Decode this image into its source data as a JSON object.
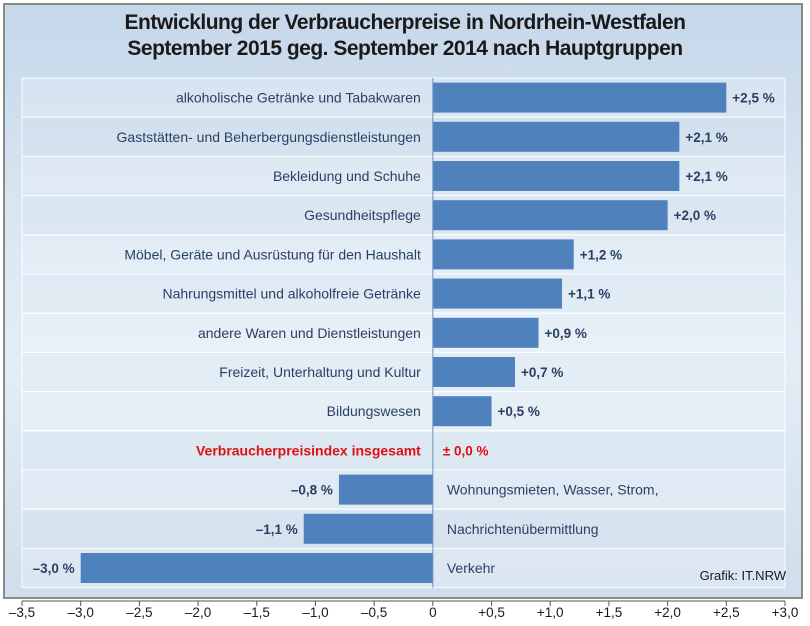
{
  "chart_data": {
    "type": "bar",
    "orientation": "horizontal",
    "title_lines": [
      "Entwicklung der Verbraucherpreise in Nordrhein-Westfalen",
      "September 2015 geg. September 2014 nach Hauptgruppen"
    ],
    "categories": [
      "alkoholische Getränke und Tabakwaren",
      "Gaststätten-  und Beherbergungsdienstleistungen",
      "Bekleidung und Schuhe",
      "Gesundheitspflege",
      "Möbel, Geräte und Ausrüstung  für den Haushalt",
      "Nahrungsmittel und alkoholfreie Getränke",
      "andere Waren und Dienstleistungen",
      "Freizeit, Unterhaltung und Kultur",
      "Bildungswesen",
      "Verbraucherpreisindex insgesamt",
      "Wohnungsmieten, Wasser, Strom,",
      "Nachrichtenübermittlung",
      "Verkehr"
    ],
    "values": [
      2.5,
      2.1,
      2.1,
      2.0,
      1.2,
      1.1,
      0.9,
      0.7,
      0.5,
      0.0,
      -0.8,
      -1.1,
      -3.0
    ],
    "value_labels": [
      "+2,5 %",
      "+2,1 %",
      "+2,1 %",
      "+2,0 %",
      "+1,2 %",
      "+1,1 %",
      "+0,9 %",
      "+0,7 %",
      "+0,5 %",
      "± 0,0 %",
      "–0,8 %",
      "–1,1 %",
      "–3,0 %"
    ],
    "highlight_index": 9,
    "xlim": [
      -3.5,
      3.0
    ],
    "x_ticks": [
      -3.5,
      -3.0,
      -2.5,
      -2.0,
      -1.5,
      -1.0,
      -0.5,
      0,
      0.5,
      1.0,
      1.5,
      2.0,
      2.5,
      3.0
    ],
    "x_tick_labels": [
      "–3,5",
      "–3,0",
      "–2,5",
      "–2,0",
      "–1,5",
      "–1,0",
      "–0,5",
      "0",
      "+0,5",
      "+1,0",
      "+1,5",
      "+2,0",
      "+2,5",
      "+3,0"
    ],
    "source": "Grafik: IT.NRW",
    "colors": {
      "bar": "#4f81bd",
      "highlight_text": "#e01010",
      "label_text": "#2b3f63"
    }
  }
}
